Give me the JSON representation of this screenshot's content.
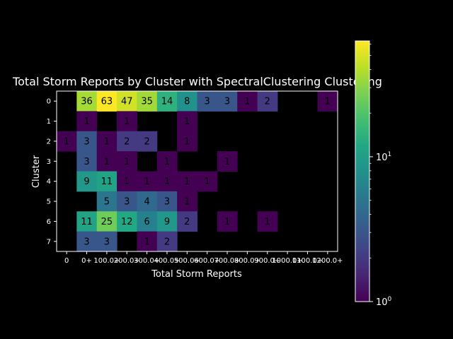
{
  "chart_data": {
    "type": "heatmap",
    "title": "Total Storm Reports by Cluster with SpectralClustering Clustering",
    "xlabel": "Total Storm Reports",
    "ylabel": "Cluster",
    "x_categories": [
      "0",
      "0+",
      "100.0+",
      "200.0+",
      "300.0+",
      "400.0+",
      "500.0+",
      "600.0+",
      "700.0+",
      "800.0+",
      "900.0+",
      "1000.0+",
      "1100.0+",
      "1200.0+"
    ],
    "y_categories": [
      "0",
      "1",
      "2",
      "3",
      "4",
      "5",
      "6",
      "7"
    ],
    "values": [
      [
        null,
        36,
        63,
        47,
        35,
        14,
        8,
        3,
        3,
        1,
        2,
        null,
        null,
        1
      ],
      [
        null,
        1,
        null,
        1,
        null,
        null,
        1,
        null,
        null,
        null,
        null,
        null,
        null,
        null
      ],
      [
        1,
        3,
        1,
        2,
        2,
        null,
        1,
        null,
        null,
        null,
        null,
        null,
        null,
        null
      ],
      [
        null,
        3,
        1,
        1,
        null,
        1,
        null,
        null,
        1,
        null,
        null,
        null,
        null,
        null
      ],
      [
        null,
        9,
        11,
        1,
        1,
        1,
        1,
        1,
        null,
        null,
        null,
        null,
        null,
        null
      ],
      [
        null,
        null,
        5,
        3,
        4,
        3,
        1,
        null,
        null,
        null,
        null,
        null,
        null,
        null
      ],
      [
        null,
        11,
        25,
        12,
        6,
        9,
        2,
        null,
        1,
        null,
        1,
        null,
        null,
        null
      ],
      [
        null,
        3,
        3,
        null,
        1,
        2,
        null,
        null,
        null,
        null,
        null,
        null,
        null,
        null
      ]
    ],
    "colorscale": "viridis",
    "color_scale_type": "log",
    "colorbar_range": [
      1,
      63
    ],
    "colorbar_ticks": [
      {
        "value": 1,
        "label": "10",
        "exp": "0"
      },
      {
        "value": 10,
        "label": "10",
        "exp": "1"
      }
    ],
    "background": "#000000",
    "grid": false
  }
}
